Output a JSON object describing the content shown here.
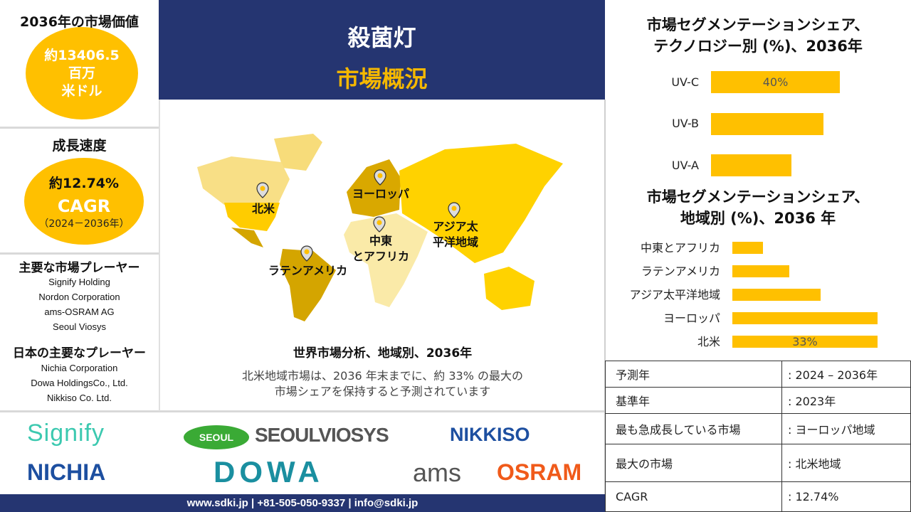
{
  "colors": {
    "navy": "#253571",
    "yellow": "#ffc000",
    "title_yellow": "#f5b800"
  },
  "left": {
    "market_value": {
      "title": "2036年の市場価値",
      "line1": "約13406.5",
      "line2": "百万",
      "line3": "米ドル"
    },
    "growth": {
      "title": "成長速度",
      "rate": "約12.74%",
      "cagr": "CAGR",
      "period": "（2024－2036年）"
    },
    "key_players": {
      "title": "主要な市場プレーヤー",
      "items": [
        "Signify Holding",
        "Nordon  Corporation",
        "ams-OSRAM AG",
        "Seoul Viosys"
      ]
    },
    "japan_players": {
      "title": "日本の主要なプレーヤー",
      "items": [
        "Nichia Corporation",
        "Dowa HoldingsCo., Ltd.",
        "Nikkiso Co. Ltd."
      ]
    }
  },
  "banner": {
    "title": "殺菌灯",
    "subtitle": "市場概況"
  },
  "map": {
    "pins": [
      {
        "label": "北米",
        "icon": "location-pin-icon"
      },
      {
        "label": "ヨーロッパ",
        "icon": "location-pin-icon"
      },
      {
        "label": "中東\nとアフリカ",
        "icon": "location-pin-icon"
      },
      {
        "label": "アジア太\n平洋地域",
        "icon": "location-pin-icon"
      },
      {
        "label": "ラテンアメリカ",
        "icon": "location-pin-icon"
      }
    ],
    "caption": "世界市場分析、地域別、2036年",
    "description_line1": "北米地域市場は、2036 年末までに、約 33% の最大の",
    "description_line2": "市場シェアを保持すると予測されています"
  },
  "chart_data": [
    {
      "type": "bar",
      "orientation": "horizontal",
      "title_line1": "市場セグメンテーションシェア、",
      "title_line2": "テクノロジー別 (%)、2036年",
      "categories": [
        "UV-C",
        "UV-B",
        "UV-A"
      ],
      "values": [
        40,
        35,
        25
      ],
      "data_labels": [
        "40%",
        "",
        ""
      ],
      "grid": false
    },
    {
      "type": "bar",
      "orientation": "horizontal",
      "title_line1": "市場セグメンテーションシェア、",
      "title_line2": "地域別 (%)、2036 年",
      "categories": [
        "中東とアフリカ",
        "ラテンアメリカ",
        "アジア太平洋地域",
        "ヨーロッパ",
        "北米"
      ],
      "values": [
        7,
        13,
        20,
        33,
        33
      ],
      "data_labels": [
        "",
        "",
        "",
        "",
        "33%"
      ],
      "grid": false
    }
  ],
  "summary_table": [
    {
      "label": "予測年",
      "value": ": 2024 – 2036年"
    },
    {
      "label": "基準年",
      "value": ": 2023年"
    },
    {
      "label": "最も急成長している市場",
      "value": ": ヨーロッパ地域"
    },
    {
      "label": "最大の市場",
      "value": ": 北米地域"
    },
    {
      "label": "CAGR",
      "value": ": 12.74%"
    }
  ],
  "logos": [
    "Signify",
    "SEOUL",
    "SEOULVIOSYS",
    "NIKKISO",
    "NICHIA",
    "DOWA",
    "ams",
    "OSRAM"
  ],
  "footer": {
    "text": "www.sdki.jp | +81-505-050-9337 | info@sdki.jp"
  }
}
